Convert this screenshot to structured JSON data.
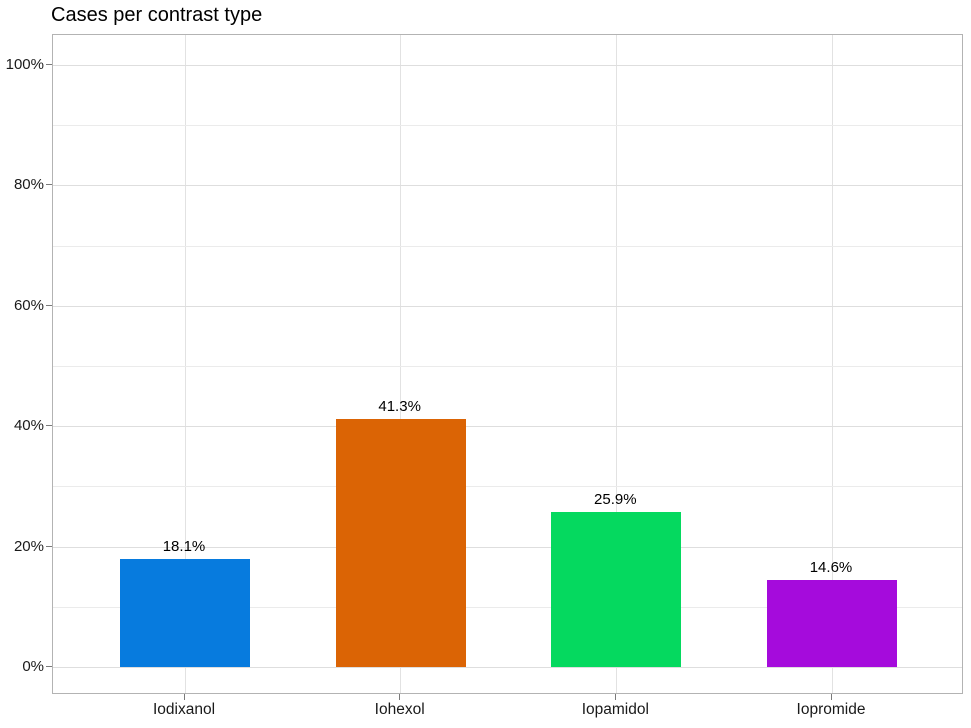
{
  "chart_data": {
    "type": "bar",
    "title": "Cases per contrast type",
    "categories": [
      "Iodixanol",
      "Iohexol",
      "Iopamidol",
      "Iopromide"
    ],
    "values": [
      18.1,
      41.3,
      25.9,
      14.6
    ],
    "value_labels": [
      "18.1%",
      "41.3%",
      "25.9%",
      "14.6%"
    ],
    "bar_colors": [
      "#077BDE",
      "#DB6405",
      "#05D95F",
      "#A50BDC"
    ],
    "xlabel": "",
    "ylabel": "",
    "ylim": [
      0,
      100
    ],
    "y_major_ticks": [
      0,
      20,
      40,
      60,
      80,
      100
    ],
    "y_tick_labels": [
      "0%",
      "20%",
      "40%",
      "60%",
      "80%",
      "100%"
    ],
    "y_minor_ticks": [
      10,
      30,
      50,
      70,
      90
    ],
    "grid": "on",
    "legend_position": "none",
    "style": {
      "background_color": "#ffffff",
      "panel_border_color": "#b3b3b3",
      "grid_major_color": "#dedede",
      "grid_minor_color": "#ebebeb",
      "grid_vertical_color": "#e2e2e2",
      "axis_tick_color": "#7a7a7a",
      "text_color": "#000000"
    }
  }
}
